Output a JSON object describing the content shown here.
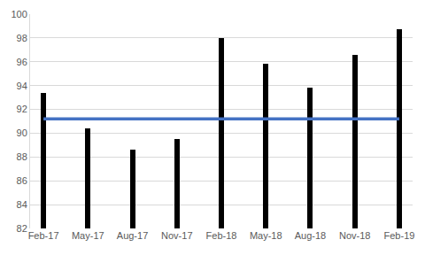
{
  "chart_data": {
    "type": "bar",
    "categories": [
      "Feb-17",
      "May-17",
      "Aug-17",
      "Nov-17",
      "Feb-18",
      "May-18",
      "Aug-18",
      "Nov-18",
      "Feb-19"
    ],
    "series": [
      {
        "type": "bar",
        "color": "#000000",
        "values": [
          93.4,
          90.4,
          88.6,
          89.5,
          98.0,
          95.8,
          93.8,
          96.6,
          98.7
        ]
      },
      {
        "type": "line",
        "color": "#4472c4",
        "line_style": "solid",
        "values": [
          91.2,
          91.2,
          91.2,
          91.2,
          91.2,
          91.2,
          91.2,
          91.2,
          91.2
        ]
      }
    ],
    "ylim": [
      82,
      100
    ],
    "yticks": [
      82,
      84,
      86,
      88,
      90,
      92,
      94,
      96,
      98,
      100
    ],
    "grid": true
  }
}
